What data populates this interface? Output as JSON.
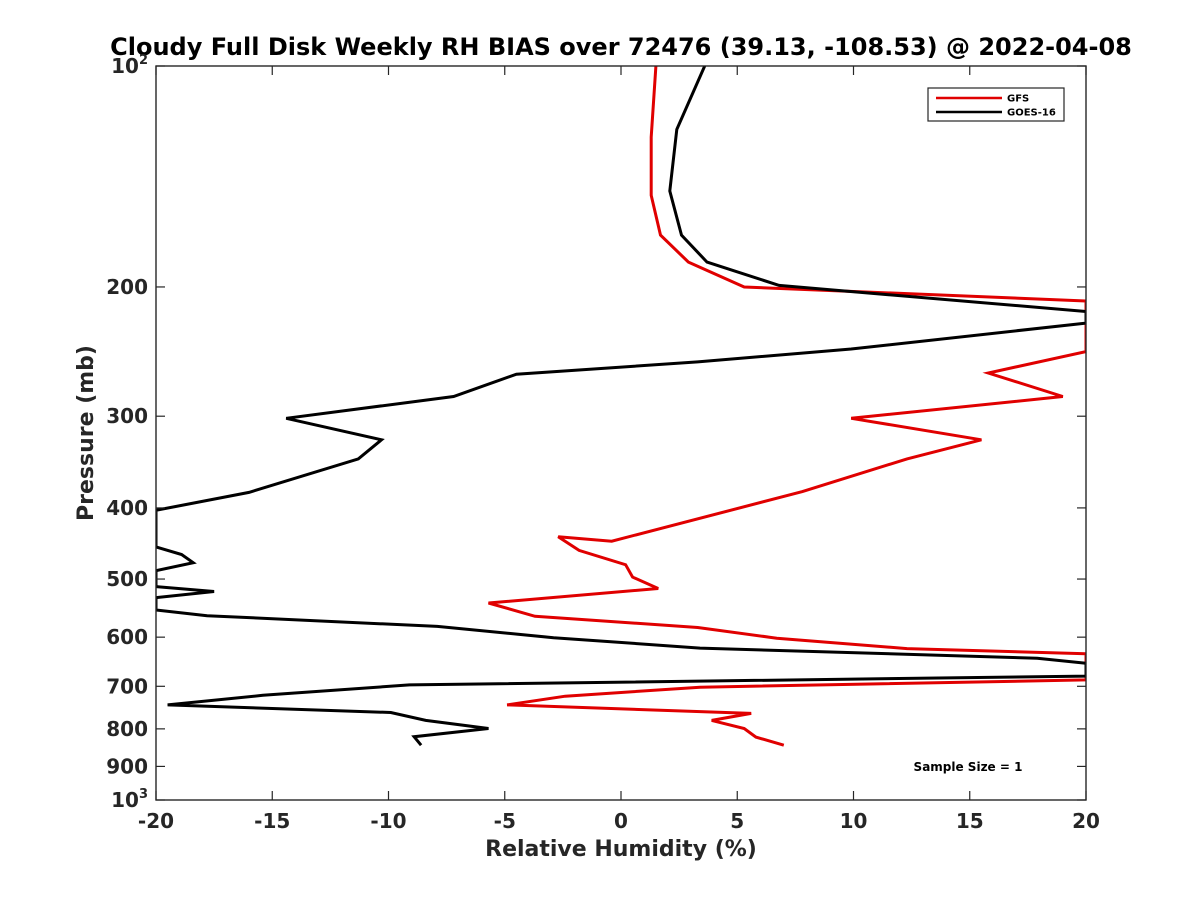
{
  "chart_data": {
    "type": "line",
    "title": "Cloudy Full Disk Weekly RH BIAS over 72476 (39.13, -108.53) @ 2022-04-08",
    "xlabel": "Relative Humidity (%)",
    "ylabel": "Pressure (mb)",
    "xlim": [
      -20,
      20
    ],
    "ylim": [
      100,
      1000
    ],
    "yscale": "log",
    "y_reversed": true,
    "xticks": [
      -20,
      -15,
      -10,
      -5,
      0,
      5,
      10,
      15,
      20
    ],
    "xtick_labels": [
      "-20",
      "-15",
      "-10",
      "-5",
      "0",
      "5",
      "10",
      "15",
      "20"
    ],
    "yticks": [
      {
        "value": 100,
        "base": "10",
        "exp": "2"
      },
      {
        "value": 200,
        "label": "200"
      },
      {
        "value": 300,
        "label": "300"
      },
      {
        "value": 400,
        "label": "400"
      },
      {
        "value": 500,
        "label": "500"
      },
      {
        "value": 600,
        "label": "600"
      },
      {
        "value": 700,
        "label": "700"
      },
      {
        "value": 800,
        "label": "800"
      },
      {
        "value": 900,
        "label": "900"
      },
      {
        "value": 1000,
        "base": "10",
        "exp": "3"
      }
    ],
    "legend_position": "top-right",
    "grid": false,
    "annotation": "Sample Size = 1",
    "series": [
      {
        "name": "GFS",
        "color": "#e00000",
        "points": [
          [
            1.5,
            100
          ],
          [
            1.3,
            125
          ],
          [
            1.3,
            150
          ],
          [
            1.7,
            170
          ],
          [
            2.9,
            185
          ],
          [
            5.3,
            200
          ],
          [
            20.0,
            209
          ],
          [
            20.0,
            212
          ],
          [
            20.0,
            245
          ],
          [
            15.8,
            262
          ],
          [
            19.0,
            282
          ],
          [
            9.9,
            302
          ],
          [
            15.5,
            323
          ],
          [
            12.3,
            343
          ],
          [
            7.8,
            380
          ],
          [
            -0.4,
            444
          ],
          [
            -2.7,
            438
          ],
          [
            -1.8,
            457
          ],
          [
            0.2,
            478
          ],
          [
            0.5,
            497
          ],
          [
            1.6,
            515
          ],
          [
            -5.7,
            539
          ],
          [
            -3.7,
            562
          ],
          [
            3.3,
            582
          ],
          [
            6.7,
            602
          ],
          [
            12.3,
            622
          ],
          [
            20.0,
            632
          ],
          [
            20.0,
            682
          ],
          [
            20.0,
            686
          ],
          [
            3.4,
            702
          ],
          [
            -2.4,
            722
          ],
          [
            -4.9,
            742
          ],
          [
            5.6,
            762
          ],
          [
            3.9,
            779
          ],
          [
            5.3,
            799
          ],
          [
            5.8,
            821
          ],
          [
            7.0,
            842
          ]
        ]
      },
      {
        "name": "GOES-16",
        "color": "#000000",
        "points": [
          [
            3.6,
            100
          ],
          [
            2.4,
            122
          ],
          [
            2.1,
            148
          ],
          [
            2.6,
            170
          ],
          [
            3.7,
            185
          ],
          [
            6.8,
            199
          ],
          [
            20.0,
            216
          ],
          [
            20.0,
            224
          ],
          [
            9.9,
            243
          ],
          [
            3.3,
            253
          ],
          [
            -4.5,
            263
          ],
          [
            -7.2,
            282
          ],
          [
            -14.4,
            302
          ],
          [
            -10.3,
            323
          ],
          [
            -11.3,
            343
          ],
          [
            -16.0,
            381
          ],
          [
            -20.0,
            403
          ],
          [
            -20.0,
            452
          ],
          [
            -18.9,
            463
          ],
          [
            -18.4,
            475
          ],
          [
            -20.0,
            487
          ],
          [
            -20.0,
            512
          ],
          [
            -17.5,
            520
          ],
          [
            -20.0,
            530
          ],
          [
            -20.0,
            551
          ],
          [
            -17.8,
            561
          ],
          [
            -7.9,
            580
          ],
          [
            -2.9,
            601
          ],
          [
            3.4,
            621
          ],
          [
            17.9,
            641
          ],
          [
            20.0,
            651
          ],
          [
            20.0,
            678
          ],
          [
            -9.1,
            697
          ],
          [
            -15.4,
            720
          ],
          [
            -19.5,
            742
          ],
          [
            -9.9,
            760
          ],
          [
            -8.4,
            779
          ],
          [
            -5.7,
            799
          ],
          [
            -8.9,
            820
          ],
          [
            -8.6,
            842
          ]
        ]
      }
    ]
  }
}
